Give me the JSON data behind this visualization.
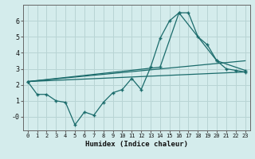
{
  "xlabel": "Humidex (Indice chaleur)",
  "background_color": "#d4ecec",
  "grid_color": "#b8d4d4",
  "line_color": "#1a6b6b",
  "xlim": [
    -0.5,
    23.5
  ],
  "ylim": [
    -0.85,
    7.0
  ],
  "xticks": [
    0,
    1,
    2,
    3,
    4,
    5,
    6,
    7,
    8,
    9,
    10,
    11,
    12,
    13,
    14,
    15,
    16,
    17,
    18,
    19,
    20,
    21,
    22,
    23
  ],
  "yticks": [
    0,
    1,
    2,
    3,
    4,
    5,
    6
  ],
  "ytick_labels": [
    "-0",
    "1",
    "2",
    "3",
    "4",
    "5",
    "6"
  ],
  "line1_x": [
    0,
    1,
    2,
    3,
    4,
    5,
    6,
    7,
    8,
    9,
    10,
    11,
    12,
    13,
    14,
    15,
    16,
    17,
    18,
    19,
    20,
    21,
    22,
    23
  ],
  "line1_y": [
    2.2,
    1.4,
    1.4,
    1.0,
    0.9,
    -0.5,
    0.3,
    0.1,
    0.9,
    1.5,
    1.7,
    2.4,
    1.7,
    3.1,
    4.9,
    6.0,
    6.5,
    6.5,
    5.0,
    4.5,
    3.5,
    3.0,
    2.9,
    2.8
  ],
  "line2_x": [
    0,
    23
  ],
  "line2_y": [
    2.2,
    2.8
  ],
  "line3_x": [
    0,
    14,
    16,
    20,
    23
  ],
  "line3_y": [
    2.2,
    3.1,
    6.5,
    3.5,
    2.9
  ],
  "line4_x": [
    0,
    23
  ],
  "line4_y": [
    2.2,
    3.5
  ]
}
